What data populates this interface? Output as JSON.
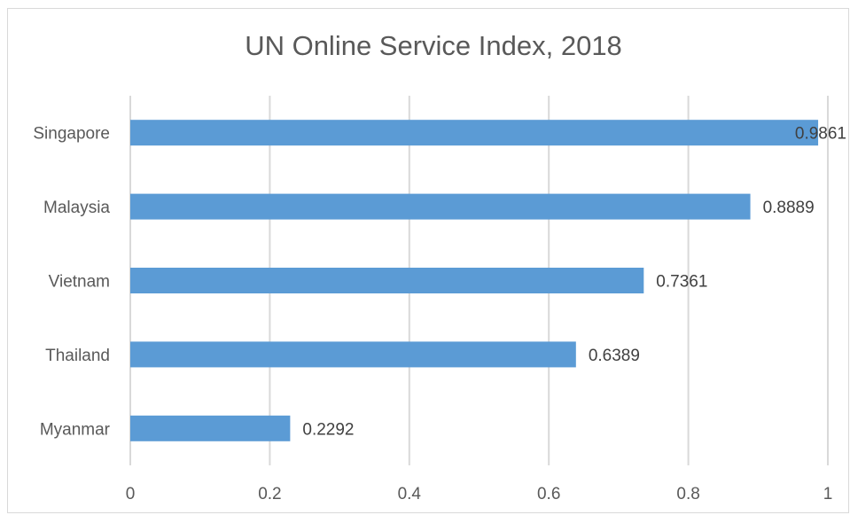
{
  "chart_data": {
    "type": "bar",
    "orientation": "horizontal",
    "title": "UN Online Service Index, 2018",
    "categories": [
      "Singapore",
      "Malaysia",
      "Vietnam",
      "Thailand",
      "Myanmar"
    ],
    "values": [
      0.9861,
      0.8889,
      0.7361,
      0.6389,
      0.2292
    ],
    "data_labels": [
      "0.9861",
      "0.8889",
      "0.7361",
      "0.6389",
      "0.2292"
    ],
    "xlabel": "",
    "ylabel": "",
    "xlim": [
      0,
      1
    ],
    "x_ticks": [
      "0",
      "0.2",
      "0.4",
      "0.6",
      "0.8",
      "1"
    ],
    "x_tick_values": [
      0,
      0.2,
      0.4,
      0.6,
      0.8,
      1
    ],
    "grid": true,
    "legend": "none",
    "bar_color": "#5b9bd5",
    "grid_color": "#d9d9d9",
    "text_color": "#595959"
  }
}
